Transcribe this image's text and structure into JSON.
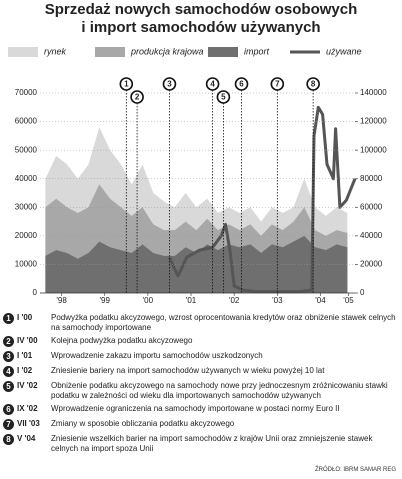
{
  "chart_data": {
    "type": "area",
    "title": [
      "Sprzedaż nowych samochodów osobowych",
      "i import samochodów używanych"
    ],
    "x": [
      1998.125,
      1998.375,
      1998.625,
      1998.875,
      1999.125,
      1999.375,
      1999.625,
      1999.875,
      2000.125,
      2000.375,
      2000.625,
      2000.875,
      2001.125,
      2001.375,
      2001.625,
      2001.875,
      2002.125,
      2002.375,
      2002.625,
      2002.875,
      2003.125,
      2003.375,
      2003.625,
      2003.875,
      2004.125,
      2004.375,
      2004.625,
      2004.875,
      2005.125
    ],
    "series": [
      {
        "name": "rynek",
        "color": "#d9d9d9",
        "values": [
          40000,
          48000,
          45000,
          40000,
          45000,
          58000,
          50000,
          45000,
          38000,
          45000,
          35000,
          32000,
          30000,
          35000,
          30000,
          33000,
          28000,
          30000,
          28000,
          30000,
          25000,
          30000,
          28000,
          30000,
          40000,
          30000,
          27000,
          30000,
          28000
        ]
      },
      {
        "name": "produkcja krajowa",
        "color": "#a8a8a8",
        "values": [
          30000,
          33000,
          30000,
          28000,
          30000,
          38000,
          33000,
          30000,
          27000,
          30000,
          24000,
          22000,
          22000,
          25000,
          22000,
          26000,
          22000,
          24000,
          22000,
          24000,
          20000,
          24000,
          22000,
          25000,
          30000,
          22000,
          20000,
          22000,
          21000
        ]
      },
      {
        "name": "import",
        "color": "#6f6f6f",
        "values": [
          13000,
          15000,
          14000,
          12000,
          14000,
          18000,
          16000,
          15000,
          14000,
          17000,
          14000,
          13000,
          13000,
          16000,
          14000,
          17000,
          15000,
          17000,
          16000,
          17000,
          14000,
          17000,
          16000,
          18000,
          20000,
          16000,
          15000,
          17000,
          16000
        ]
      },
      {
        "name": "używane",
        "color": "#555555",
        "type": "line",
        "axis": "y2",
        "x": [
          2001.0,
          2001.1,
          2001.2,
          2001.4,
          2001.7,
          2002.0,
          2002.2,
          2002.3,
          2002.4,
          2002.5,
          2002.7,
          2003.0,
          2003.5,
          2004.0,
          2004.3,
          2004.35,
          2004.45,
          2004.55,
          2004.65,
          2004.8,
          2004.85,
          2004.95,
          2005.1,
          2005.3
        ],
        "values": [
          25000,
          18000,
          12000,
          25000,
          30000,
          32000,
          40000,
          48000,
          30000,
          5000,
          2000,
          1000,
          1000,
          1000,
          2000,
          110000,
          130000,
          125000,
          90000,
          80000,
          115000,
          60000,
          65000,
          80000
        ]
      }
    ],
    "xlim": [
      1998,
      2005.3
    ],
    "xticks": [
      {
        "value": 1998.5,
        "label": "'98"
      },
      {
        "value": 1999.5,
        "label": "'99"
      },
      {
        "value": 2000.5,
        "label": "'00"
      },
      {
        "value": 2001.5,
        "label": "'01"
      },
      {
        "value": 2002.5,
        "label": "'02"
      },
      {
        "value": 2003.5,
        "label": "'03"
      },
      {
        "value": 2004.5,
        "label": "'04"
      },
      {
        "value": 2005.15,
        "label": "'05"
      }
    ],
    "ylim": [
      0,
      70000
    ],
    "yticks": [
      0,
      10000,
      20000,
      30000,
      40000,
      50000,
      60000,
      70000
    ],
    "y2lim": [
      0,
      140000
    ],
    "y2ticks": [
      0,
      20000,
      40000,
      60000,
      80000,
      100000,
      120000,
      140000
    ],
    "grid": true,
    "events": [
      {
        "num": "1",
        "date": "I '00",
        "x": 2000.0,
        "text": "Podwyżka podatku akcyzowego, wzrost oprocentowania kredytów oraz obniżenie stawek celnych na samochody importowane"
      },
      {
        "num": "2",
        "date": "IV '00",
        "x": 2000.25,
        "text": "Kolejna podwyżka podatku akcyzowego"
      },
      {
        "num": "3",
        "date": "I '01",
        "x": 2001.0,
        "text": "Wprowadzenie zakazu importu samochodów uszkodzonych"
      },
      {
        "num": "4",
        "date": "I '02",
        "x": 2002.0,
        "text": "Zniesienie bariery na import samochodów używanych w wieku powyżej 10 lat"
      },
      {
        "num": "5",
        "date": "IV '02",
        "x": 2002.25,
        "text": "Obniżenie podatku akcyzowego na samochody nowe przy jednoczesnym zróżnicowaniu stawki podatku w zależności od wieku dla importowanych samochodów używanych"
      },
      {
        "num": "6",
        "date": "IX '02",
        "x": 2002.67,
        "text": "Wprowadzenie ograniczenia na samochody importowane w postaci normy Euro II"
      },
      {
        "num": "7",
        "date": "VII '03",
        "x": 2003.5,
        "text": "Zmiany w sposobie obliczania podatku akcyzowego"
      },
      {
        "num": "8",
        "date": "V '04",
        "x": 2004.33,
        "text": "Zniesienie wszelkich barier na import samochodów z krajów Unii oraz zmniejszenie stawek celnych na import spoza Unii"
      }
    ],
    "source": "ŹRÓDŁO: IBRM SAMAR   REG"
  }
}
